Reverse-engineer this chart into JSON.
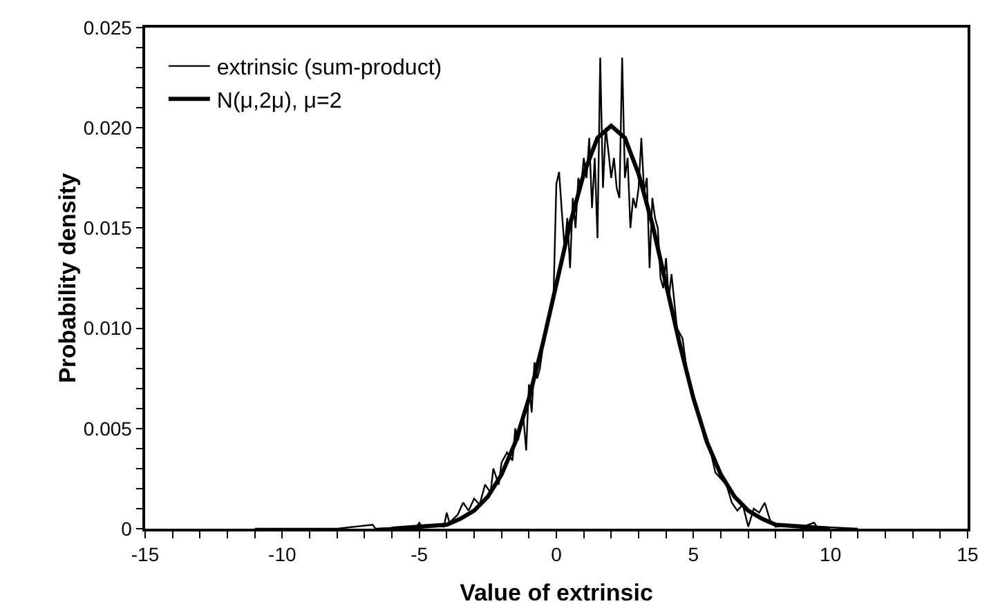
{
  "chart_data": {
    "type": "line",
    "xlabel": "Value of extrinsic",
    "ylabel": "Probability density",
    "xlim": [
      -15,
      15
    ],
    "ylim": [
      0,
      0.025
    ],
    "xticks": [
      -15,
      {
        "value": -14,
        "label": null
      },
      {
        "value": -13,
        "label": null
      },
      {
        "value": -12,
        "label": null
      },
      {
        "value": -11,
        "label": null
      },
      -10,
      {
        "value": -9,
        "label": null
      },
      {
        "value": -8,
        "label": null
      },
      {
        "value": -7,
        "label": null
      },
      {
        "value": -6,
        "label": null
      },
      -5,
      {
        "value": -4,
        "label": null
      },
      {
        "value": -3,
        "label": null
      },
      {
        "value": -2,
        "label": null
      },
      {
        "value": -1,
        "label": null
      },
      0,
      {
        "value": 1,
        "label": null
      },
      {
        "value": 2,
        "label": null
      },
      {
        "value": 3,
        "label": null
      },
      {
        "value": 4,
        "label": null
      },
      5,
      {
        "value": 6,
        "label": null
      },
      {
        "value": 7,
        "label": null
      },
      {
        "value": 8,
        "label": null
      },
      {
        "value": 9,
        "label": null
      },
      10,
      {
        "value": 11,
        "label": null
      },
      {
        "value": 12,
        "label": null
      },
      {
        "value": 13,
        "label": null
      },
      {
        "value": 14,
        "label": null
      },
      15
    ],
    "yticks": [
      0,
      {
        "value": 0.001,
        "label": null
      },
      {
        "value": 0.002,
        "label": null
      },
      {
        "value": 0.003,
        "label": null
      },
      {
        "value": 0.004,
        "label": null
      },
      0.005,
      {
        "value": 0.006,
        "label": null
      },
      {
        "value": 0.007,
        "label": null
      },
      {
        "value": 0.008,
        "label": null
      },
      {
        "value": 0.009,
        "label": null
      },
      {
        "value": 0.01,
        "label": "0.010"
      },
      {
        "value": 0.011,
        "label": null
      },
      {
        "value": 0.012,
        "label": null
      },
      {
        "value": 0.013,
        "label": null
      },
      {
        "value": 0.014,
        "label": null
      },
      0.015,
      {
        "value": 0.016,
        "label": null
      },
      {
        "value": 0.017,
        "label": null
      },
      {
        "value": 0.018,
        "label": null
      },
      {
        "value": 0.019,
        "label": null
      },
      {
        "value": 0.02,
        "label": "0.020"
      },
      {
        "value": 0.021,
        "label": null
      },
      {
        "value": 0.022,
        "label": null
      },
      {
        "value": 0.023,
        "label": null
      },
      {
        "value": 0.024,
        "label": null
      },
      0.025
    ],
    "grid": false,
    "legend": "top left",
    "marker": "none",
    "line_style": "solid",
    "series": [
      {
        "name": "extrinsic (sum-product)",
        "color": "#000000",
        "x": [
          -11,
          -8,
          -6.7,
          -6.6,
          -5.1,
          -5,
          -4.9,
          -4.5,
          -4.1,
          -4,
          -3.9,
          -3.6,
          -3.4,
          -3.2,
          -3,
          -2.8,
          -2.6,
          -2.4,
          -2.3,
          -2.1,
          -2,
          -1.8,
          -1.6,
          -1.5,
          -1.4,
          -1.2,
          -1.1,
          -1,
          -0.9,
          -0.8,
          -0.7,
          -0.6,
          -0.5,
          -0.4,
          -0.3,
          -0.2,
          -0.1,
          0,
          0.1,
          0.2,
          0.3,
          0.4,
          0.5,
          0.6,
          0.7,
          0.8,
          0.9,
          1,
          1.1,
          1.2,
          1.3,
          1.4,
          1.5,
          1.6,
          1.7,
          1.8,
          1.9,
          2,
          2.1,
          2.2,
          2.3,
          2.4,
          2.5,
          2.6,
          2.7,
          2.8,
          2.9,
          3,
          3.1,
          3.2,
          3.3,
          3.4,
          3.5,
          3.6,
          3.7,
          3.8,
          3.9,
          4,
          4.1,
          4.2,
          4.4,
          4.6,
          4.8,
          5,
          5.2,
          5.4,
          5.6,
          5.8,
          6,
          6.2,
          6.4,
          6.6,
          6.8,
          7,
          7.2,
          7.4,
          7.6,
          7.8,
          8,
          8.5,
          9,
          9.4,
          9.5,
          11
        ],
        "values": [
          0,
          0,
          0.0002,
          0,
          0.0001,
          0.0003,
          0.0001,
          0.0002,
          0.0001,
          0.0008,
          0.0003,
          0.0007,
          0.0013,
          0.0009,
          0.0015,
          0.0012,
          0.0022,
          0.0018,
          0.003,
          0.0022,
          0.0033,
          0.0038,
          0.0034,
          0.005,
          0.0044,
          0.0055,
          0.0039,
          0.0072,
          0.0058,
          0.0083,
          0.0075,
          0.008,
          0.009,
          0.0098,
          0.0105,
          0.011,
          0.0118,
          0.0172,
          0.0178,
          0.0158,
          0.014,
          0.0155,
          0.013,
          0.0165,
          0.015,
          0.0175,
          0.017,
          0.0185,
          0.0175,
          0.0195,
          0.016,
          0.0185,
          0.0145,
          0.0235,
          0.017,
          0.02,
          0.0188,
          0.0175,
          0.0185,
          0.017,
          0.0165,
          0.0235,
          0.0175,
          0.0185,
          0.015,
          0.0165,
          0.016,
          0.017,
          0.0195,
          0.0168,
          0.0175,
          0.013,
          0.0165,
          0.0155,
          0.015,
          0.0125,
          0.012,
          0.0135,
          0.0115,
          0.0127,
          0.01,
          0.0095,
          0.0075,
          0.0065,
          0.0057,
          0.0045,
          0.004,
          0.0028,
          0.0025,
          0.0022,
          0.0013,
          0.0009,
          0.0012,
          0.0001,
          0.001,
          0.0008,
          0.0013,
          0.0004,
          0.0001,
          0.0002,
          0.0001,
          0.0003,
          0.0001,
          0
        ]
      },
      {
        "name": "N(μ,2μ), μ=2",
        "color": "#000000",
        "x": [
          -6,
          -5,
          -4,
          -3.5,
          -3,
          -2.5,
          -2,
          -1.5,
          -1,
          -0.5,
          0,
          0.5,
          1,
          1.5,
          2,
          2.5,
          3,
          3.5,
          4,
          4.5,
          5,
          5.5,
          6,
          6.5,
          7,
          7.5,
          8,
          9,
          10
        ],
        "values": [
          0,
          0.0001,
          0.0002,
          0.0005,
          0.0009,
          0.0016,
          0.0027,
          0.0043,
          0.0065,
          0.0092,
          0.0122,
          0.0152,
          0.0177,
          0.0195,
          0.0201,
          0.0195,
          0.0177,
          0.0152,
          0.0122,
          0.0092,
          0.0065,
          0.0043,
          0.0027,
          0.0016,
          0.0009,
          0.0005,
          0.0002,
          0.0001,
          0
        ]
      }
    ]
  }
}
